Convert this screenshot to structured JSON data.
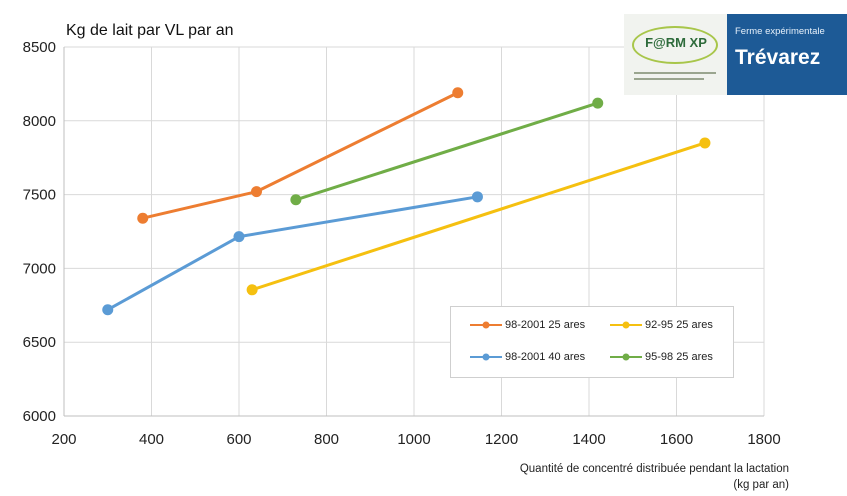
{
  "chart_data": {
    "type": "line",
    "title": "Kg de lait par VL par an",
    "xlabel_line1": "Quantité de concentré distribuée pendant la lactation",
    "xlabel_line2": "(kg par an)",
    "xlim": [
      200,
      1800
    ],
    "ylim": [
      6000,
      8500
    ],
    "xticks": [
      200,
      400,
      600,
      800,
      1000,
      1200,
      1400,
      1600,
      1800
    ],
    "yticks": [
      6000,
      6500,
      7000,
      7500,
      8000,
      8500
    ],
    "grid": true,
    "legend_position": "bottom-right",
    "series": [
      {
        "name": "98-2001 25 ares",
        "color": "#ed7d31",
        "points": [
          {
            "x": 380,
            "y": 7340
          },
          {
            "x": 640,
            "y": 7520
          },
          {
            "x": 1100,
            "y": 8190
          }
        ]
      },
      {
        "name": "92-95 25 ares",
        "color": "#f5c010",
        "points": [
          {
            "x": 630,
            "y": 6855
          },
          {
            "x": 1665,
            "y": 7850
          }
        ]
      },
      {
        "name": "98-2001 40 ares",
        "color": "#5b9bd5",
        "points": [
          {
            "x": 300,
            "y": 6720
          },
          {
            "x": 600,
            "y": 7215
          },
          {
            "x": 1145,
            "y": 7485
          }
        ]
      },
      {
        "name": "95-98 25 ares",
        "color": "#70ad47",
        "points": [
          {
            "x": 730,
            "y": 7465
          },
          {
            "x": 1420,
            "y": 8120
          }
        ]
      }
    ]
  },
  "logo": {
    "left_text": "F@RM XP",
    "subtitle": "Ferme expérimentale",
    "title": "Trévarez",
    "left_color": "#2e6b3b",
    "right_color": "#1d5a96"
  }
}
